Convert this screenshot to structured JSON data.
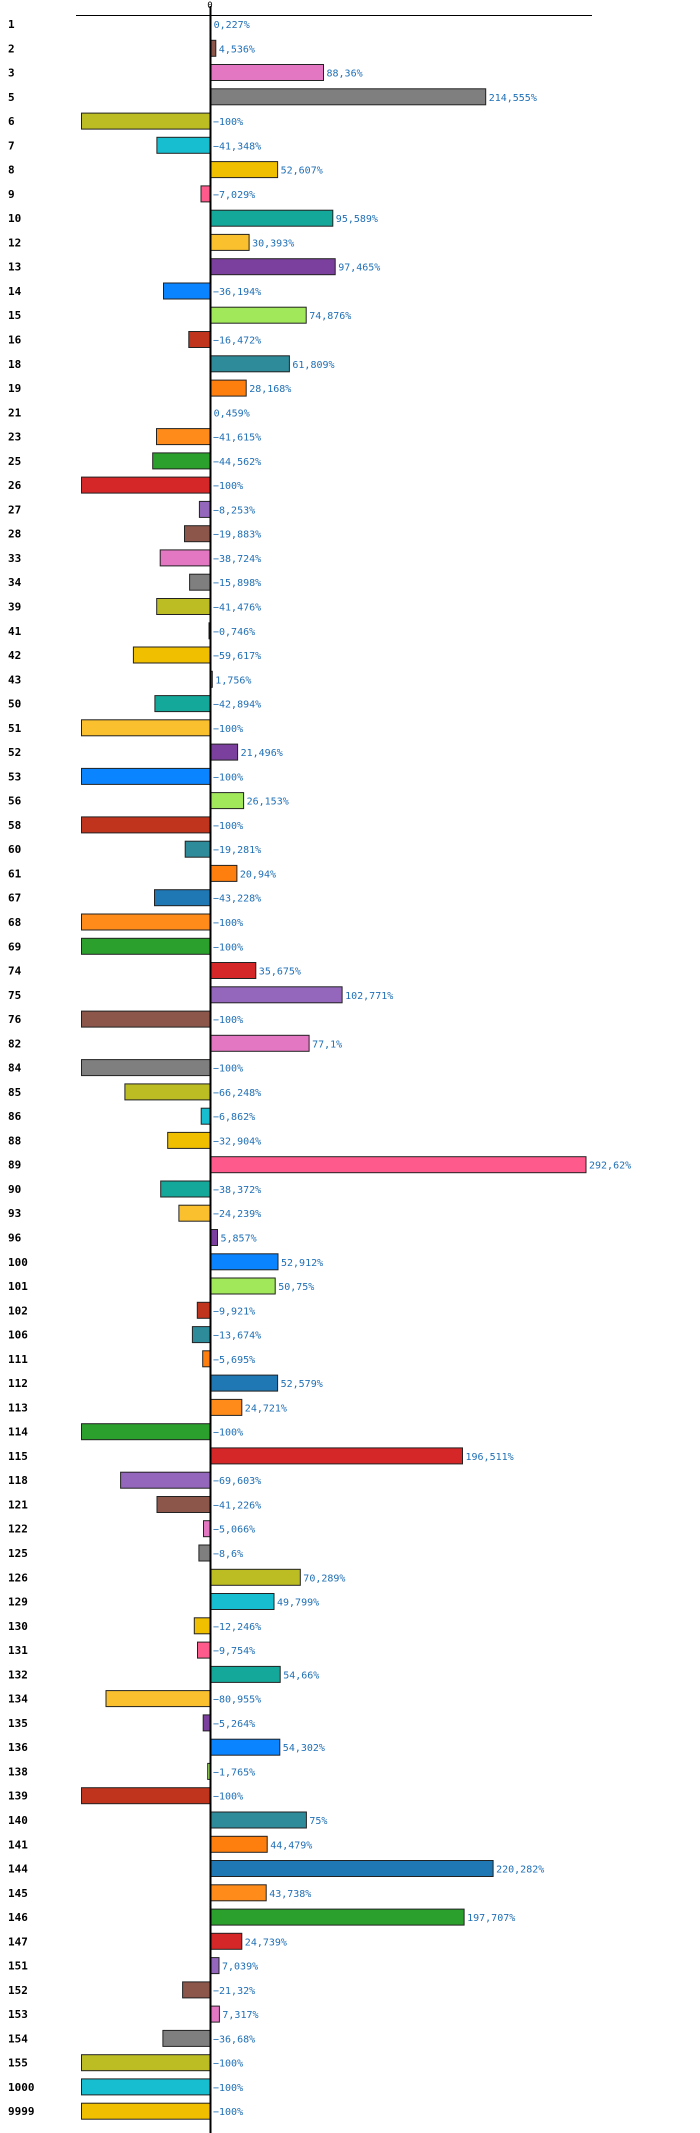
{
  "colors": {
    "value_text": "#1f6fb5",
    "highlight_label": "#e31a1c",
    "axis": "#000000",
    "palette": [
      "#9467bd",
      "#8c564b",
      "#e377c2",
      "#7f7f7f",
      "#bcbd22",
      "#17becf",
      "#f0c000",
      "#ff5a8c",
      "#14a89a",
      "#fbc02d",
      "#7b3f9e",
      "#0a84ff",
      "#a1e85b",
      "#c0341d",
      "#2e8b9a",
      "#ff7f0e",
      "#1f77b4",
      "#ff8c1a",
      "#2ca02c",
      "#d62728"
    ]
  },
  "chart_data": {
    "type": "bar",
    "orientation": "horizontal",
    "title": "",
    "xlabel": "",
    "ylabel": "",
    "zero_tick_label": "0",
    "xlim": [
      -100,
      292.62
    ],
    "value_suffix": "%",
    "highlight_category": "145",
    "categories": [
      "1",
      "2",
      "3",
      "5",
      "6",
      "7",
      "8",
      "9",
      "10",
      "12",
      "13",
      "14",
      "15",
      "16",
      "18",
      "19",
      "21",
      "23",
      "25",
      "26",
      "27",
      "28",
      "33",
      "34",
      "39",
      "41",
      "42",
      "43",
      "50",
      "51",
      "52",
      "53",
      "56",
      "58",
      "60",
      "61",
      "67",
      "68",
      "69",
      "74",
      "75",
      "76",
      "82",
      "84",
      "85",
      "86",
      "88",
      "89",
      "90",
      "93",
      "96",
      "100",
      "101",
      "102",
      "106",
      "111",
      "112",
      "113",
      "114",
      "115",
      "118",
      "121",
      "122",
      "125",
      "126",
      "129",
      "130",
      "131",
      "132",
      "134",
      "135",
      "136",
      "138",
      "139",
      "140",
      "141",
      "144",
      "145",
      "146",
      "147",
      "151",
      "152",
      "153",
      "154",
      "155",
      "1000",
      "9999"
    ],
    "values": [
      0.227,
      4.536,
      88.36,
      214.555,
      -100,
      -41.348,
      52.607,
      -7.029,
      95.589,
      30.393,
      97.465,
      -36.194,
      74.876,
      -16.472,
      61.809,
      28.168,
      0.459,
      -41.615,
      -44.562,
      -100,
      -8.253,
      -19.883,
      -38.724,
      -15.898,
      -41.476,
      -0.746,
      -59.617,
      1.756,
      -42.894,
      -100,
      21.496,
      -100,
      26.153,
      -100,
      -19.281,
      20.94,
      -43.228,
      -100,
      -100,
      35.675,
      102.771,
      -100,
      77.1,
      -100,
      -66.248,
      -6.862,
      -32.904,
      292.62,
      -38.372,
      -24.239,
      5.857,
      52.912,
      50.75,
      -9.921,
      -13.674,
      -5.695,
      52.579,
      24.721,
      -100,
      196.511,
      -69.603,
      -41.226,
      -5.066,
      -8.6,
      70.289,
      49.799,
      -12.246,
      -9.754,
      54.66,
      -80.955,
      -5.264,
      54.302,
      -1.765,
      -100,
      75,
      44.479,
      220.282,
      43.738,
      197.707,
      24.739,
      7.039,
      -21.32,
      7.317,
      -36.68,
      -100,
      -100,
      -100
    ],
    "value_labels": [
      "0,227%",
      "4,536%",
      "88,36%",
      "214,555%",
      "−100%",
      "−41,348%",
      "52,607%",
      "−7,029%",
      "95,589%",
      "30,393%",
      "97,465%",
      "−36,194%",
      "74,876%",
      "−16,472%",
      "61,809%",
      "28,168%",
      "0,459%",
      "−41,615%",
      "−44,562%",
      "−100%",
      "−8,253%",
      "−19,883%",
      "−38,724%",
      "−15,898%",
      "−41,476%",
      "−0,746%",
      "−59,617%",
      "1,756%",
      "−42,894%",
      "−100%",
      "21,496%",
      "−100%",
      "26,153%",
      "−100%",
      "−19,281%",
      "20,94%",
      "−43,228%",
      "−100%",
      "−100%",
      "35,675%",
      "102,771%",
      "−100%",
      "77,1%",
      "−100%",
      "−66,248%",
      "−6,862%",
      "−32,904%",
      "292,62%",
      "−38,372%",
      "−24,239%",
      "5,857%",
      "52,912%",
      "50,75%",
      "−9,921%",
      "−13,674%",
      "−5,695%",
      "52,579%",
      "24,721%",
      "−100%",
      "196,511%",
      "−69,603%",
      "−41,226%",
      "−5,066%",
      "−8,6%",
      "70,289%",
      "49,799%",
      "−12,246%",
      "−9,754%",
      "54,66%",
      "−80,955%",
      "−5,264%",
      "54,302%",
      "−1,765%",
      "−100%",
      "75%",
      "44,479%",
      "220,282%",
      "43,738%",
      "197,707%",
      "24,739%",
      "7,039%",
      "−21,32%",
      "7,317%",
      "−36,68%",
      "−100%",
      "−100%",
      "−100%"
    ]
  }
}
